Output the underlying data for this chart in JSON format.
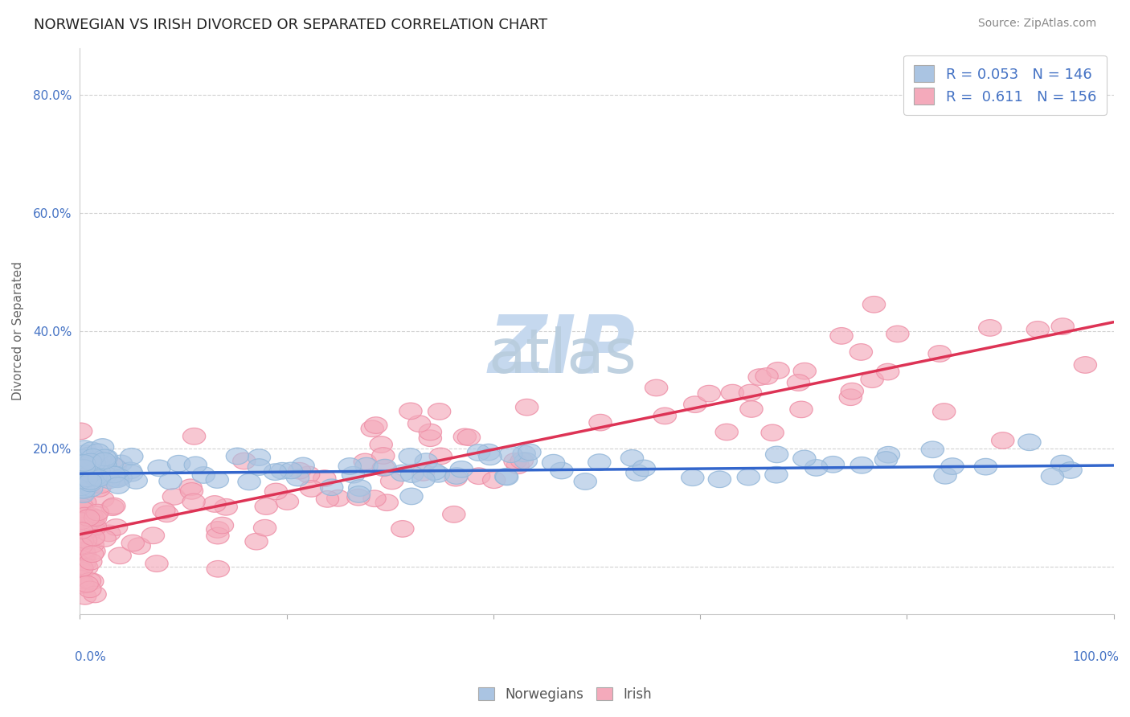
{
  "title": "NORWEGIAN VS IRISH DIVORCED OR SEPARATED CORRELATION CHART",
  "source_text": "Source: ZipAtlas.com",
  "ylabel": "Divorced or Separated",
  "xlim": [
    0.0,
    1.0
  ],
  "ylim": [
    -0.08,
    0.88
  ],
  "yticks": [
    0.0,
    0.2,
    0.4,
    0.6,
    0.8
  ],
  "ytick_labels": [
    "",
    "20.0%",
    "40.0%",
    "60.0%",
    "80.0%"
  ],
  "legend_R_norwegian": "0.053",
  "legend_N_norwegian": "146",
  "legend_R_irish": "0.611",
  "legend_N_irish": "156",
  "norwegian_color": "#aac4e2",
  "norwegian_edge_color": "#7aaad0",
  "irish_color": "#f4aabb",
  "irish_edge_color": "#e87090",
  "norwegian_line_color": "#3366cc",
  "irish_line_color": "#dd3355",
  "watermark_zip_color": "#c5d8ee",
  "watermark_atlas_color": "#b8ccdd",
  "title_fontsize": 13,
  "axis_label_fontsize": 11,
  "tick_fontsize": 11,
  "legend_fontsize": 13,
  "legend_text_color": "#4472c4",
  "tick_color": "#4472c4",
  "nor_line_start_y": 0.158,
  "nor_line_end_y": 0.172,
  "irish_line_start_y": 0.055,
  "irish_line_end_y": 0.415
}
